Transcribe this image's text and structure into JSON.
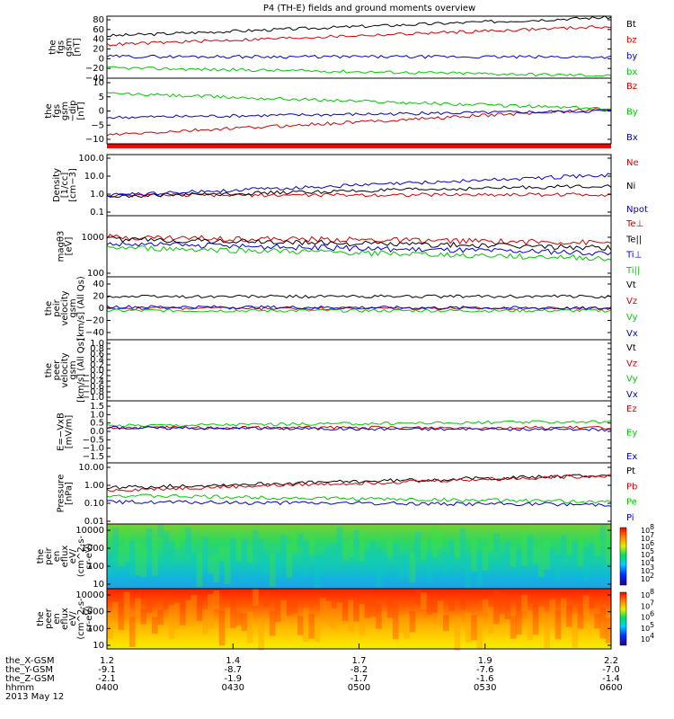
{
  "chart_data": {
    "type": "line",
    "title": "P4 (TH-E) fields and ground moments overview",
    "date": "2013 May 12",
    "time_axis": {
      "row_labels": [
        "the_X-GSM",
        "the_Y-GSM",
        "the_Z-GSM",
        "hhmm"
      ],
      "ticks": [
        {
          "x": "1.2",
          "y": "-9.1",
          "z": "-2.1",
          "t": "0400"
        },
        {
          "x": "1.4",
          "y": "-8.7",
          "z": "-1.9",
          "t": "0430"
        },
        {
          "x": "1.7",
          "y": "-8.2",
          "z": "-1.7",
          "t": "0500"
        },
        {
          "x": "1.9",
          "y": "-7.6",
          "z": "-1.6",
          "t": "0530"
        },
        {
          "x": "2.2",
          "y": "-7.0",
          "z": "-1.4",
          "t": "0600"
        }
      ],
      "range_minutes": [
        0,
        120
      ]
    },
    "colors": {
      "black": "#000000",
      "red": "#d40000",
      "green": "#00c800",
      "blue": "#0000d0"
    },
    "panels": [
      {
        "id": "fgs-gsm",
        "ylabel": [
          "the",
          "fgs",
          "gsm",
          "[nT]"
        ],
        "ylim": [
          -40,
          80
        ],
        "yticks": [
          "80",
          "60",
          "40",
          "20",
          "0",
          "−20",
          "−40"
        ],
        "series": [
          {
            "name": "Bt",
            "color": "black",
            "start": 42,
            "end": 78
          },
          {
            "name": "bz",
            "color": "red",
            "start": 25,
            "end": 60
          },
          {
            "name": "by",
            "color": "blue",
            "start": 2,
            "end": 1
          },
          {
            "name": "bx",
            "color": "green",
            "start": -20,
            "end": -35
          }
        ]
      },
      {
        "id": "fgs-dip",
        "ylabel": [
          "the",
          "fgs",
          "gsm",
          "−dip",
          "[nT]"
        ],
        "ylim": [
          -15,
          15
        ],
        "yticks": [
          "10",
          "5",
          "0",
          "−5",
          "−10"
        ],
        "series": [
          {
            "name": "Bz",
            "color": "red",
            "start": -11,
            "end": 1
          },
          {
            "name": "By",
            "color": "green",
            "start": 8,
            "end": 1
          },
          {
            "name": "Bx",
            "color": "blue",
            "start": -3,
            "end": 0
          }
        ]
      },
      {
        "id": "density",
        "ylabel": [
          "Density",
          "[1/cc]",
          "[cm−3]"
        ],
        "log": true,
        "ylim": [
          0.1,
          100
        ],
        "yticks": [
          "100.0",
          "10.0",
          "1.0",
          "0.1"
        ],
        "series": [
          {
            "name": "Ne",
            "color": "red",
            "start": 1.0,
            "end": 1.1
          },
          {
            "name": "Ni",
            "color": "black",
            "start": 0.9,
            "end": 3.0
          },
          {
            "name": "Npot",
            "color": "blue",
            "start": 1.0,
            "end": 10.0
          }
        ]
      },
      {
        "id": "temperature",
        "ylabel": [
          "magθ3",
          "[eV]"
        ],
        "log": true,
        "ylim": [
          100,
          10000
        ],
        "yticks": [
          "1000",
          "100"
        ],
        "series": [
          {
            "name": "Te⊥",
            "color": "red",
            "start": 2000,
            "end": 1300
          },
          {
            "name": "Te||",
            "color": "black",
            "start": 1700,
            "end": 900
          },
          {
            "name": "Ti⊥",
            "color": "blue",
            "start": 1200,
            "end": 600
          },
          {
            "name": "Ti||",
            "color": "green",
            "start": 900,
            "end": 400
          }
        ]
      },
      {
        "id": "peir-velocity",
        "ylabel": [
          "the",
          "peir",
          "velocity",
          "gsm",
          "[km/s] (All Qs)"
        ],
        "ylim": [
          -40,
          40
        ],
        "yticks": [
          "40",
          "20",
          "0",
          "−20",
          "−40"
        ],
        "series": [
          {
            "name": "Vt",
            "color": "black",
            "start": 15,
            "end": 15
          },
          {
            "name": "Vz",
            "color": "red",
            "start": 0,
            "end": 0
          },
          {
            "name": "Vy",
            "color": "green",
            "start": -3,
            "end": -3
          },
          {
            "name": "Vx",
            "color": "blue",
            "start": 2,
            "end": 0
          }
        ]
      },
      {
        "id": "peer-velocity",
        "ylabel": [
          "the",
          "peer",
          "velocity",
          "gsm",
          "[km/s] (All Qs)"
        ],
        "ylim": [
          -1,
          1
        ],
        "yticks": [
          "1.0",
          "0.8",
          "0.6",
          "0.4",
          "0.2",
          "0.0",
          "−0.2",
          "−0.4",
          "−0.6",
          "−0.8",
          "−1.0"
        ],
        "series": [
          {
            "name": "Vt",
            "color": "black"
          },
          {
            "name": "Vz",
            "color": "red"
          },
          {
            "name": "Vy",
            "color": "green"
          },
          {
            "name": "Vx",
            "color": "blue"
          }
        ]
      },
      {
        "id": "efield",
        "ylabel": [
          "E=−VxB",
          "[mV/m]"
        ],
        "ylim": [
          -1.5,
          1.5
        ],
        "yticks": [
          "1.5",
          "1.0",
          "0.5",
          "0.0",
          "−0.5",
          "−1.0",
          "−1.5"
        ],
        "series": [
          {
            "name": "Ez",
            "color": "red",
            "start": 0.2,
            "end": 0.2
          },
          {
            "name": "Ey",
            "color": "green",
            "start": 0.3,
            "end": 0.5
          },
          {
            "name": "Ex",
            "color": "blue",
            "start": 0.2,
            "end": 0.1
          }
        ]
      },
      {
        "id": "pressure",
        "ylabel": [
          "Pressure",
          "[nPa]"
        ],
        "log": true,
        "ylim": [
          0.01,
          10
        ],
        "yticks": [
          "10.00",
          "1.00",
          "0.10",
          "0.01"
        ],
        "series": [
          {
            "name": "Pt",
            "color": "black",
            "start": 0.6,
            "end": 2.5
          },
          {
            "name": "Pb",
            "color": "red",
            "start": 0.45,
            "end": 2.4
          },
          {
            "name": "Pe",
            "color": "green",
            "start": 0.25,
            "end": 0.12
          },
          {
            "name": "Pi",
            "color": "blue",
            "start": 0.12,
            "end": 0.09
          }
        ]
      },
      {
        "id": "peir-efflux",
        "type": "heatmap",
        "ylabel": [
          "the",
          "peir",
          "en",
          "eflux",
          "eV/",
          "(cm^2-s-",
          "sr-eV)"
        ],
        "yticks": [
          "10000",
          "1000",
          "100",
          "10"
        ],
        "colorbar_ticks": [
          "10",
          "10",
          "10",
          "10",
          "10",
          "10",
          "10"
        ],
        "colorbar_exponents": [
          "8",
          "7",
          "6",
          "5",
          "4",
          "3",
          "2"
        ]
      },
      {
        "id": "peer-efflux",
        "type": "heatmap",
        "ylabel": [
          "the",
          "peer",
          "en",
          "eflux",
          "eV/",
          "(cm^2-s-",
          "sr-eV)"
        ],
        "yticks": [
          "10000",
          "1000",
          "100",
          "10"
        ],
        "colorbar_ticks": [
          "10",
          "10",
          "10",
          "10",
          "10"
        ],
        "colorbar_exponents": [
          "8",
          "7",
          "6",
          "5",
          "4"
        ]
      }
    ]
  }
}
